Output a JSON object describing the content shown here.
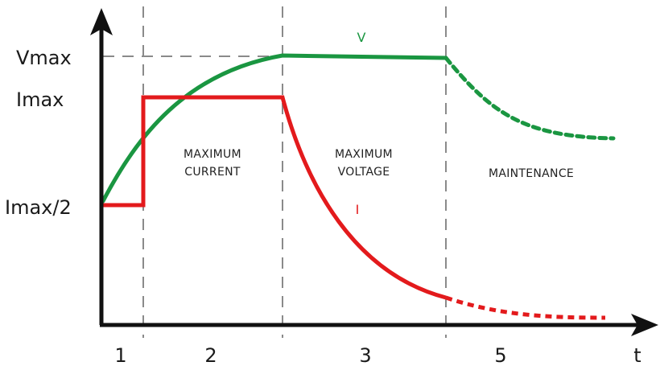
{
  "axes": {
    "x_label": "t",
    "y_labels": {
      "vmax": "Vmax",
      "imax": "Imax",
      "imax_half": "Imax/2"
    }
  },
  "stages": [
    "1",
    "2",
    "3",
    "5"
  ],
  "phases": {
    "max_current": [
      "MAXIMUM",
      "CURRENT"
    ],
    "max_voltage": [
      "MAXIMUM",
      "VOLTAGE"
    ],
    "maintenance": [
      "MAINTENANCE"
    ]
  },
  "curves": {
    "voltage": {
      "label": "V",
      "color": "#1a9641"
    },
    "current": {
      "label": "I",
      "color": "#e31a1c"
    }
  },
  "colors": {
    "axis": "#111111",
    "guide": "#8a8a8a"
  }
}
